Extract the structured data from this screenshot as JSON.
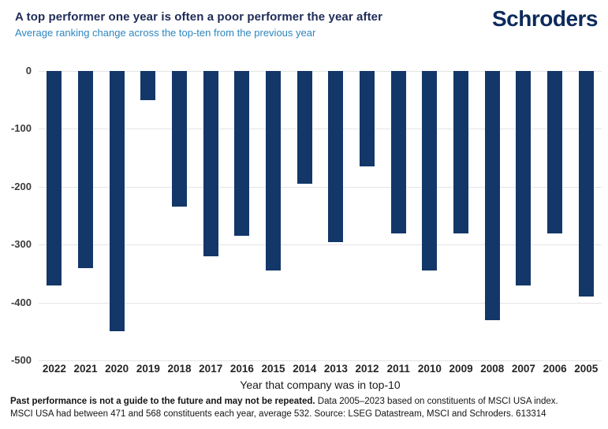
{
  "header": {
    "title": "A top performer one year is often a poor performer the year after",
    "subtitle": "Average ranking change across the top-ten from the previous year",
    "logo": "Schroders"
  },
  "chart_data": {
    "type": "bar",
    "title": "A top performer one year is often a poor performer the year after",
    "subtitle": "Average ranking change across the top-ten from the previous year",
    "categories": [
      "2022",
      "2021",
      "2020",
      "2019",
      "2018",
      "2017",
      "2016",
      "2015",
      "2014",
      "2013",
      "2012",
      "2011",
      "2010",
      "2009",
      "2008",
      "2007",
      "2006",
      "2005"
    ],
    "values": [
      -370,
      -340,
      -450,
      -50,
      -235,
      -320,
      -285,
      -345,
      -195,
      -295,
      -165,
      -280,
      -345,
      -280,
      -430,
      -370,
      -280,
      -390
    ],
    "xlabel": "Year that company was in top-10",
    "ylabel": "",
    "ylim": [
      -500,
      0
    ],
    "yticks": [
      0,
      -100,
      -200,
      -300,
      -400,
      -500
    ],
    "grid": true,
    "legend": false,
    "bar_color": "#133768",
    "gridline_color": "#e4e4e4"
  },
  "footnote": {
    "line1_bold": "Past performance is not a guide to the future and may not be repeated.",
    "line1_rest": " Data 2005–2023 based on constituents of MSCI USA index.",
    "line2": "MSCI USA had between 471 and 568 constituents each year, average 532. Source: LSEG Datastream, MSCI and Schroders. 613314"
  }
}
